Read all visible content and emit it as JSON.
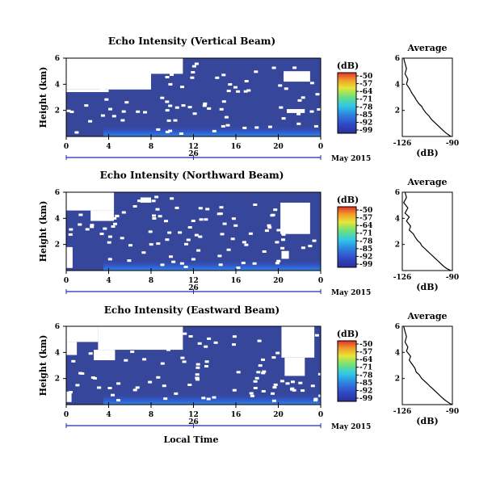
{
  "chart_data": [
    {
      "type": "heatmap",
      "title": "Echo Intensity (Vertical Beam)",
      "ylabel": "Height (km)",
      "xlabel": "",
      "x_ticks": [
        "0",
        "4",
        "8",
        "12",
        "16",
        "20",
        "0"
      ],
      "y_ticks": [
        "6",
        "4",
        "2"
      ],
      "date_label": "May 2015",
      "date_tick": "26",
      "xlim": [
        0,
        24
      ],
      "ylim": [
        0,
        6
      ],
      "colorbar": {
        "label": "(dB)",
        "ticks": [
          "-50",
          "-57",
          "-64",
          "-71",
          "-78",
          "-85",
          "-92",
          "-99"
        ]
      },
      "white_blocks": [
        [
          0,
          3.6,
          8,
          6
        ],
        [
          8,
          4.8,
          11,
          6
        ],
        [
          0,
          3.4,
          4,
          3.6
        ],
        [
          20.5,
          4.2,
          23,
          5
        ],
        [
          20.8,
          1.8,
          22.5,
          2.1
        ]
      ],
      "average": {
        "title": "Average",
        "xlabel": "(dB)",
        "x_ticks": [
          "-126",
          "-90"
        ],
        "y_ticks": [
          "6",
          "4",
          "2"
        ],
        "xlim": [
          -126,
          -90
        ],
        "ylim": [
          0,
          6
        ],
        "x": [
          -125,
          -124,
          -123,
          -124,
          -122,
          -123,
          -121,
          -120,
          -119,
          -117,
          -116,
          -114,
          -112,
          -111,
          -109,
          -107,
          -105,
          -103,
          -101,
          -99,
          -97,
          -95,
          -93,
          -91
        ],
        "y": [
          6.0,
          5.6,
          5.2,
          4.8,
          4.4,
          4.0,
          3.7,
          3.5,
          3.3,
          3.0,
          2.8,
          2.5,
          2.3,
          2.1,
          1.8,
          1.6,
          1.3,
          1.1,
          0.9,
          0.7,
          0.5,
          0.3,
          0.15,
          0.0
        ]
      }
    },
    {
      "type": "heatmap",
      "title": "Echo Intensity (Northward Beam)",
      "ylabel": "Height (km)",
      "xlabel": "",
      "x_ticks": [
        "0",
        "4",
        "8",
        "12",
        "16",
        "20",
        "0"
      ],
      "y_ticks": [
        "6",
        "4",
        "2"
      ],
      "date_label": "May 2015",
      "date_tick": "26",
      "xlim": [
        0,
        24
      ],
      "ylim": [
        0,
        6
      ],
      "colorbar": {
        "label": "(dB)",
        "ticks": [
          "-50",
          "-57",
          "-64",
          "-71",
          "-78",
          "-85",
          "-92",
          "-99"
        ]
      },
      "white_blocks": [
        [
          0,
          4.6,
          4.5,
          6
        ],
        [
          2.3,
          3.8,
          4.5,
          4.6
        ],
        [
          7,
          5.2,
          8,
          5.6
        ],
        [
          20.2,
          2.8,
          23,
          5.2
        ],
        [
          0,
          0.2,
          0.6,
          1.8
        ],
        [
          20.3,
          0.9,
          21,
          1.5
        ]
      ],
      "average": {
        "title": "Average",
        "xlabel": "(dB)",
        "x_ticks": [
          "-126",
          "-90"
        ],
        "y_ticks": [
          "6",
          "4",
          "2"
        ],
        "xlim": [
          -126,
          -90
        ],
        "ylim": [
          0,
          6
        ],
        "x": [
          -124,
          -123,
          -125,
          -122,
          -124,
          -121,
          -123,
          -120,
          -121,
          -118,
          -117,
          -115,
          -113,
          -112,
          -110,
          -108,
          -106,
          -104,
          -102,
          -100,
          -98,
          -96,
          -94,
          -91
        ],
        "y": [
          6.0,
          5.6,
          5.2,
          4.8,
          4.4,
          4.1,
          3.8,
          3.4,
          3.1,
          2.8,
          2.6,
          2.3,
          2.1,
          1.9,
          1.7,
          1.5,
          1.3,
          1.1,
          0.9,
          0.7,
          0.5,
          0.3,
          0.15,
          0.0
        ]
      }
    },
    {
      "type": "heatmap",
      "title": "Echo Intensity (Eastward Beam)",
      "ylabel": "Height (km)",
      "xlabel": "Local Time",
      "x_ticks": [
        "0",
        "4",
        "8",
        "12",
        "16",
        "20",
        "0"
      ],
      "y_ticks": [
        "6",
        "4",
        "2"
      ],
      "date_label": "May 2015",
      "date_tick": "26",
      "xlim": [
        0,
        24
      ],
      "ylim": [
        0,
        6
      ],
      "colorbar": {
        "label": "(dB)",
        "ticks": [
          "-50",
          "-57",
          "-64",
          "-71",
          "-78",
          "-85",
          "-92",
          "-99"
        ]
      },
      "white_blocks": [
        [
          0,
          4.8,
          3,
          6
        ],
        [
          3,
          4.2,
          11,
          6
        ],
        [
          0,
          3.8,
          1,
          4.8
        ],
        [
          2.6,
          3.4,
          4.6,
          4.2
        ],
        [
          20.3,
          3.6,
          23.4,
          6
        ],
        [
          20.6,
          2.2,
          22.5,
          3.6
        ],
        [
          0,
          0.2,
          0.5,
          1.0
        ]
      ],
      "average": {
        "title": "Average",
        "xlabel": "(dB)",
        "x_ticks": [
          "-126",
          "-90"
        ],
        "y_ticks": [
          "6",
          "4",
          "2"
        ],
        "xlim": [
          -126,
          -90
        ],
        "ylim": [
          0,
          6
        ],
        "x": [
          -125,
          -124,
          -123,
          -124,
          -122,
          -123,
          -120,
          -121,
          -119,
          -117,
          -116,
          -114,
          -112,
          -110,
          -108,
          -106,
          -104,
          -102,
          -100,
          -98,
          -96,
          -94,
          -92,
          -90
        ],
        "y": [
          6.0,
          5.6,
          5.2,
          4.8,
          4.4,
          4.1,
          3.7,
          3.4,
          3.1,
          2.8,
          2.5,
          2.3,
          2.0,
          1.8,
          1.6,
          1.4,
          1.2,
          1.0,
          0.8,
          0.6,
          0.4,
          0.25,
          0.1,
          0.0
        ]
      }
    }
  ]
}
